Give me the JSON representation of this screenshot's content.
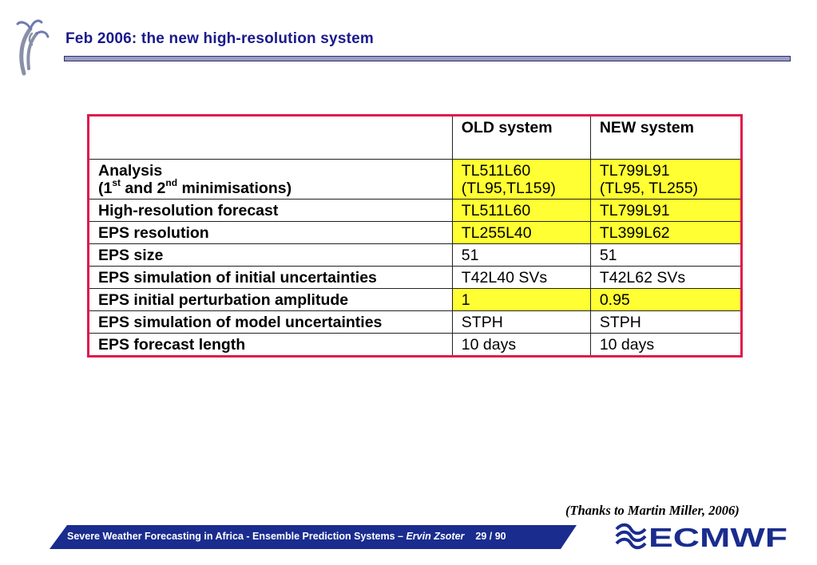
{
  "slide": {
    "title": "Feb 2006: the new high-resolution system",
    "credit": "(Thanks to Martin Miller, 2006)"
  },
  "table": {
    "headers": [
      "",
      "OLD system",
      "NEW system"
    ],
    "rows": [
      {
        "label_line1": "Analysis",
        "label_pre": "(1",
        "sup1": "st",
        "label_mid": " and 2",
        "sup2": "nd",
        "label_post": " minimisations)",
        "old": "TL511L60\n(TL95,TL159)",
        "new": "TL799L91\n(TL95, TL255)",
        "highlight": true
      },
      {
        "label": "High-resolution forecast",
        "old": "TL511L60",
        "new": "TL799L91",
        "highlight": true
      },
      {
        "label": "EPS resolution",
        "old": "TL255L40",
        "new": "TL399L62",
        "highlight": true
      },
      {
        "label": "EPS size",
        "old": "51",
        "new": "51",
        "highlight": false
      },
      {
        "label": "EPS simulation of initial uncertainties",
        "old": "T42L40 SVs",
        "new": "T42L62 SVs",
        "highlight": false
      },
      {
        "label": "EPS initial perturbation amplitude",
        "old": "1",
        "new": "0.95",
        "highlight": true
      },
      {
        "label": "EPS simulation of model uncertainties",
        "old": "STPH",
        "new": "STPH",
        "highlight": false
      },
      {
        "label": "EPS forecast length",
        "old": "10 days",
        "new": "10 days",
        "highlight": false
      }
    ]
  },
  "footer": {
    "text": "Severe Weather Forecasting in Africa - Ensemble Prediction Systems – ",
    "author": "Ervin Zsoter",
    "page": "29 / 90"
  },
  "colors": {
    "title": "#1a1a8c",
    "table_border": "#e0184c",
    "highlight": "#ffff33",
    "footer_bar": "#1a2c8e"
  },
  "icons": {
    "top_left": "ecmwf-figure-icon",
    "bottom_right": "ecmwf-logo"
  },
  "logo": {
    "text": "ECMWF"
  }
}
